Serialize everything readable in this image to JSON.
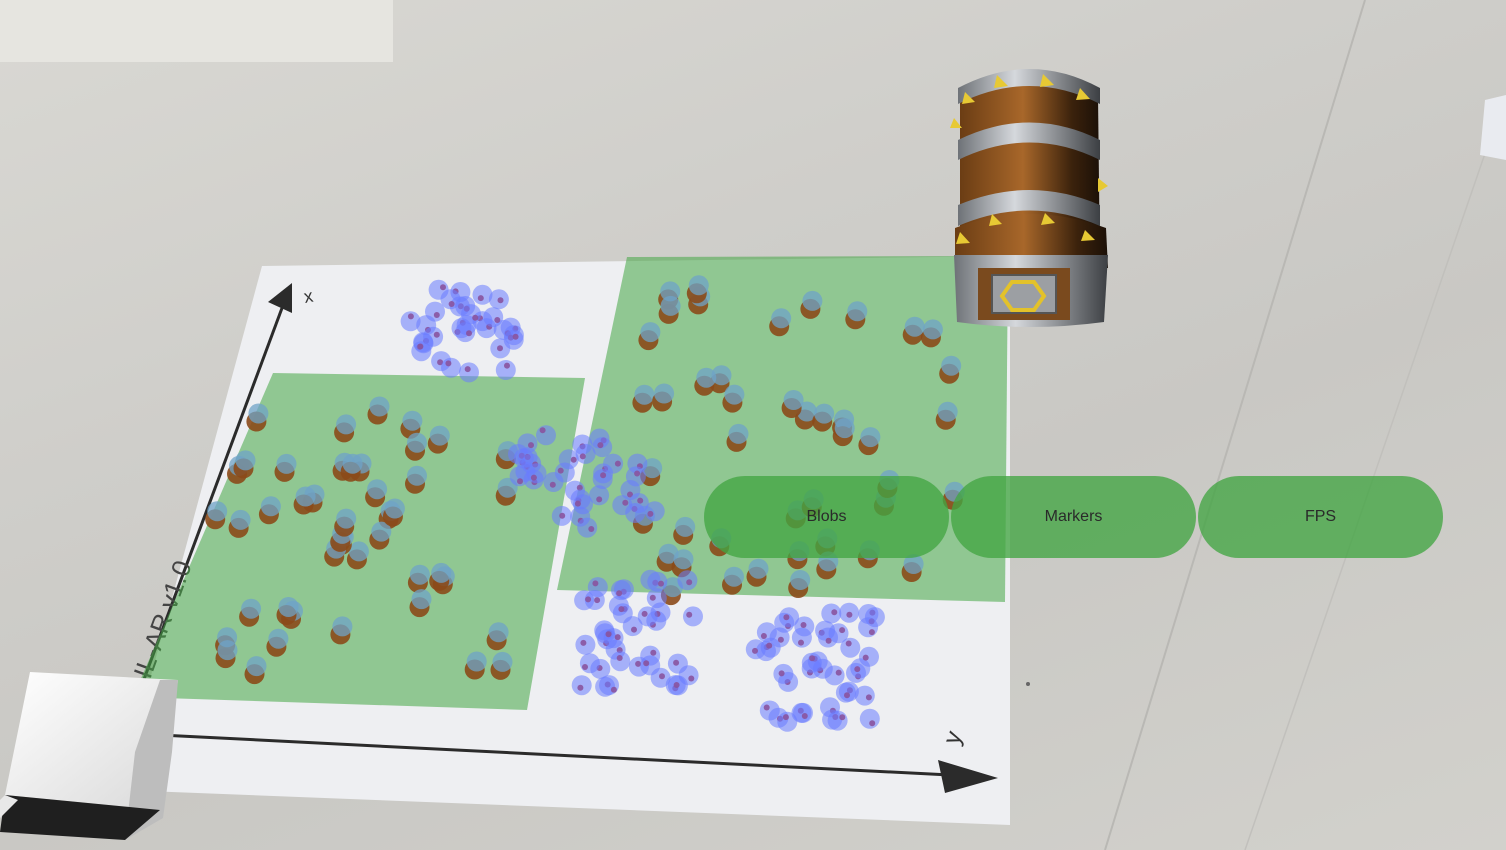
{
  "paper": {
    "title": "IL-AR v1.0",
    "x_axis_label": "x",
    "y_axis_label": "y"
  },
  "scene_objects": {
    "chest": "treasure-chest-3d",
    "cube": "white-cube-3d"
  },
  "toggles": [
    {
      "label": "Blobs"
    },
    {
      "label": "Markers"
    },
    {
      "label": "FPS"
    }
  ],
  "colors": {
    "region_green": "#43a543",
    "blob_blue": "#6a7bff",
    "blob_brown": "#8b4a1a",
    "marker_red": "#b0242a",
    "paper": "#eeeff2"
  }
}
